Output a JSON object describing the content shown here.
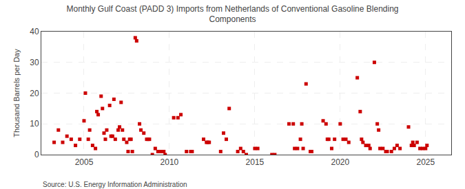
{
  "chart_data": {
    "type": "scatter",
    "title": "Monthly Gulf Coast (PADD 3) Imports from Netherlands of Conventional Gasoline Blending\nComponents",
    "ylabel": "Thousand Barrels per Day",
    "source": "Source: U.S. Energy Information Administration",
    "color": "#cc0000",
    "marker": "square",
    "grid": true,
    "xlim": [
      2002.5,
      2026.5
    ],
    "ylim": [
      0,
      40
    ],
    "xticks": [
      2005,
      2010,
      2015,
      2020,
      2025
    ],
    "yticks": [
      0,
      10,
      20,
      30,
      40
    ],
    "x": [
      2003.25,
      2003.5,
      2003.75,
      2004.0,
      2004.25,
      2004.5,
      2004.75,
      2005.0,
      2005.08,
      2005.25,
      2005.33,
      2005.5,
      2005.67,
      2005.75,
      2005.83,
      2006.0,
      2006.08,
      2006.17,
      2006.25,
      2006.33,
      2006.5,
      2006.58,
      2006.67,
      2006.75,
      2006.83,
      2007.0,
      2007.08,
      2007.17,
      2007.25,
      2007.33,
      2007.5,
      2007.58,
      2007.67,
      2007.75,
      2007.83,
      2008.0,
      2008.08,
      2008.25,
      2008.33,
      2008.5,
      2008.67,
      2008.75,
      2008.83,
      2009.0,
      2009.17,
      2009.33,
      2009.5,
      2009.67,
      2009.75,
      2010.25,
      2010.5,
      2010.67,
      2011.0,
      2011.25,
      2011.33,
      2012.0,
      2012.17,
      2012.25,
      2012.33,
      2013.0,
      2013.17,
      2013.33,
      2013.5,
      2014.0,
      2014.17,
      2014.33,
      2014.5,
      2015.0,
      2015.17,
      2016.0,
      2016.17,
      2017.0,
      2017.25,
      2017.33,
      2017.5,
      2017.67,
      2017.75,
      2017.83,
      2018.0,
      2018.25,
      2018.33,
      2019.0,
      2019.17,
      2019.25,
      2019.33,
      2019.5,
      2019.67,
      2020.0,
      2020.17,
      2020.33,
      2020.5,
      2021.0,
      2021.17,
      2021.25,
      2021.33,
      2021.5,
      2021.67,
      2021.75,
      2022.0,
      2022.17,
      2022.25,
      2022.33,
      2022.5,
      2022.67,
      2022.75,
      2023.0,
      2023.17,
      2023.33,
      2023.5,
      2024.0,
      2024.17,
      2024.25,
      2024.33,
      2024.5,
      2024.67,
      2024.83,
      2025.0,
      2025.08
    ],
    "values": [
      4,
      8,
      4,
      6,
      5,
      3,
      5,
      11,
      20,
      5,
      8,
      3,
      2,
      14,
      13,
      19,
      15,
      7,
      5,
      8,
      16,
      6,
      6,
      18,
      5,
      8,
      9,
      17,
      8,
      5,
      4,
      1,
      5,
      5,
      1,
      38,
      37,
      10,
      8,
      7,
      5,
      5,
      5,
      0,
      2,
      1,
      1,
      1,
      0,
      12,
      12,
      13,
      1,
      1,
      1,
      5,
      4,
      4,
      4,
      1,
      7,
      5,
      15,
      1,
      2,
      1,
      0,
      2,
      2,
      0,
      0,
      10,
      10,
      2,
      2,
      5,
      10,
      2,
      23,
      1,
      1,
      11,
      10,
      5,
      5,
      2,
      5,
      10,
      5,
      5,
      4,
      25,
      14,
      5,
      4,
      3,
      3,
      2,
      30,
      10,
      8,
      2,
      2,
      1,
      1,
      1,
      2,
      3,
      2,
      9,
      3,
      4,
      3,
      4,
      2,
      2,
      2,
      3
    ]
  }
}
